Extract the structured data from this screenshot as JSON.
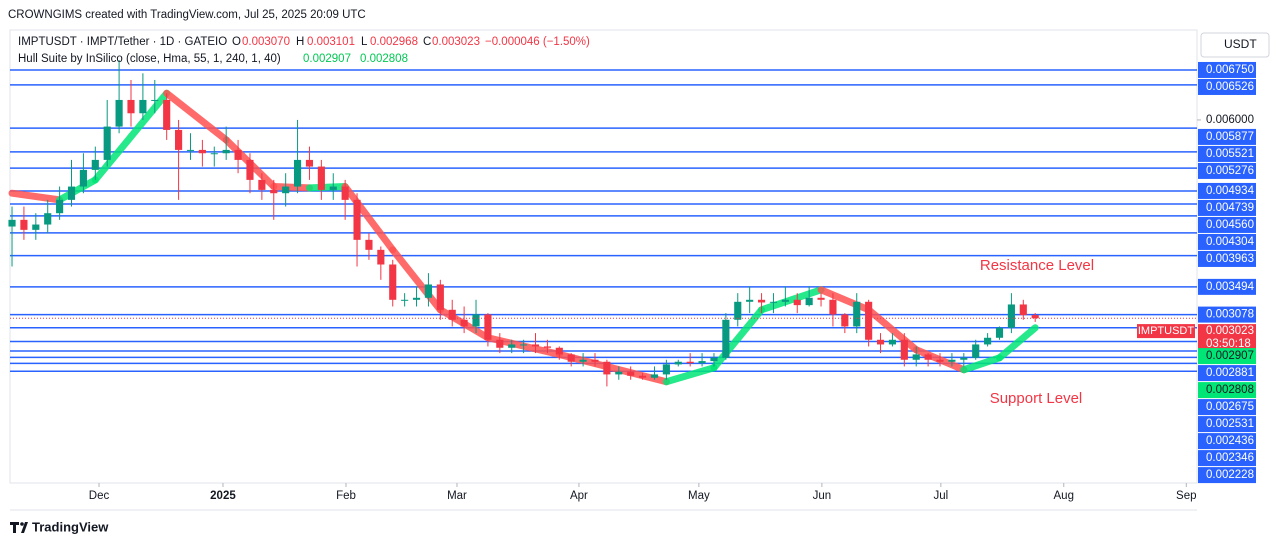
{
  "chart_data": {
    "type": "candlestick",
    "credit": "CROWNGIMS created with TradingView.com, Jul 25, 2025 20:09 UTC",
    "title": "IMPTUSDT · IMPT/Tether · 1D · GATEIO",
    "header": {
      "open": "0.003070",
      "high": "0.003101",
      "low": "0.002968",
      "close": "0.003023",
      "change": "−0.000046 (−1.50%)"
    },
    "indicator": "Hull Suite by InSilico (close, Hma, 55, 1, 240, 1, 40)",
    "hull_values": [
      0.002907,
      0.002808
    ],
    "currency": "USDT",
    "symbol": "IMPTUSDT",
    "last_price": 0.003023,
    "countdown": "03:50:18",
    "brand": "TradingView",
    "annotations": [
      "Resistance Level",
      "Support Level"
    ],
    "up_color": "#089981",
    "down_color": "#f23645",
    "level_color": "#2962ff",
    "hull_up_color": "#00e676",
    "hull_down_color": "#ff5252",
    "xlim": [
      -0.17,
      99.6
    ],
    "xticks": [
      {
        "value": 7.31,
        "label": "Dec"
      },
      {
        "value": 17.73,
        "label": "2025"
      },
      {
        "value": 28.07,
        "label": "Feb"
      },
      {
        "value": 37.4,
        "label": "Mar"
      },
      {
        "value": 47.65,
        "label": "Apr"
      },
      {
        "value": 57.73,
        "label": "May"
      },
      {
        "value": 68.07,
        "label": "Jun"
      },
      {
        "value": 78.07,
        "label": "Jul"
      },
      {
        "value": 88.4,
        "label": "Aug"
      },
      {
        "value": 98.7,
        "label": "Sep"
      }
    ],
    "ylim": [
      0.00055,
      0.00735
    ],
    "yticks": [
      {
        "value": 0.006,
        "label": "0.006000"
      }
    ],
    "levels": [
      {
        "value": 0.00675,
        "label": "0.006750"
      },
      0.006526,
      0.005877,
      0.005521,
      0.005276,
      0.004934,
      0.004739,
      {
        "value": 0.00456,
        "label": "0.004560"
      },
      0.004304,
      0.003963,
      0.003494,
      0.003078,
      0.002881,
      0.002675,
      0.002531,
      0.002436,
      0.002346,
      0.002228
    ],
    "open": [
      0.0044,
      0.0045,
      0.00435,
      0.00443,
      0.0046,
      0.0048,
      0.005,
      0.00525,
      0.0054,
      0.0059,
      0.0063,
      0.0061,
      0.0063,
      0.0063,
      0.00585,
      0.00555,
      0.00555,
      0.0055,
      0.0055,
      0.00555,
      0.0054,
      0.0051,
      0.00495,
      0.0049,
      0.005,
      0.0054,
      0.0053,
      0.00495,
      0.005,
      0.0048,
      0.0042,
      0.00405,
      0.00383,
      0.0033,
      0.0033,
      0.00333,
      0.00353,
      0.00315,
      0.003,
      0.0029,
      0.00308,
      0.0027,
      0.00258,
      0.00263,
      0.00263,
      0.0026,
      0.00258,
      0.00248,
      0.00237,
      0.0024,
      0.00237,
      0.00218,
      0.00222,
      0.00216,
      0.00213,
      0.00218,
      0.00233,
      0.00237,
      0.00235,
      0.00238,
      0.00243,
      0.003,
      0.00327,
      0.0033,
      0.00326,
      0.00327,
      0.0033,
      0.00322,
      0.00333,
      0.0033,
      0.00308,
      0.0029,
      0.00327,
      0.0027,
      0.00263,
      0.0027,
      0.0024,
      0.00248,
      0.0024,
      0.00237,
      0.0024,
      0.00243,
      0.00263,
      0.00273,
      0.00288,
      0.00323,
      0.00307
    ],
    "high": [
      0.0047,
      0.0047,
      0.0046,
      0.0048,
      0.005,
      0.0054,
      0.0055,
      0.0056,
      0.0063,
      0.0069,
      0.0066,
      0.0067,
      0.0066,
      0.0064,
      0.006,
      0.0058,
      0.0057,
      0.0056,
      0.0059,
      0.0057,
      0.0055,
      0.0052,
      0.0051,
      0.0052,
      0.006,
      0.0056,
      0.0054,
      0.0052,
      0.0051,
      0.0049,
      0.0043,
      0.0041,
      0.0039,
      0.0034,
      0.0035,
      0.0037,
      0.0036,
      0.0033,
      0.0032,
      0.0033,
      0.0031,
      0.0028,
      0.0027,
      0.0027,
      0.0028,
      0.0027,
      0.0026,
      0.0025,
      0.0025,
      0.0025,
      0.0024,
      0.0023,
      0.0023,
      0.0022,
      0.0023,
      0.0024,
      0.0024,
      0.0025,
      0.0025,
      0.0025,
      0.0031,
      0.0034,
      0.0035,
      0.0034,
      0.0034,
      0.0035,
      0.0034,
      0.0035,
      0.0034,
      0.0034,
      0.0031,
      0.0034,
      0.0033,
      0.0028,
      0.0028,
      0.0028,
      0.0026,
      0.0025,
      0.0025,
      0.0025,
      0.0025,
      0.0027,
      0.0028,
      0.0029,
      0.0034,
      0.0033,
      0.003101
    ],
    "low": [
      0.0038,
      0.0042,
      0.0042,
      0.0043,
      0.0045,
      0.0047,
      0.0049,
      0.0051,
      0.0053,
      0.0058,
      0.0059,
      0.006,
      0.0061,
      0.0057,
      0.0048,
      0.0054,
      0.0053,
      0.0053,
      0.0054,
      0.0052,
      0.0049,
      0.0048,
      0.0045,
      0.0047,
      0.0049,
      0.0051,
      0.0048,
      0.0048,
      0.0045,
      0.0038,
      0.0039,
      0.0036,
      0.0032,
      0.0032,
      0.0032,
      0.0032,
      0.003,
      0.0029,
      0.0028,
      0.0028,
      0.0026,
      0.0025,
      0.0025,
      0.0025,
      0.0025,
      0.0025,
      0.0024,
      0.0023,
      0.0023,
      0.0023,
      0.002,
      0.0021,
      0.0021,
      0.0021,
      0.0021,
      0.0021,
      0.0023,
      0.0023,
      0.0023,
      0.0023,
      0.0024,
      0.0029,
      0.0031,
      0.0031,
      0.0031,
      0.0032,
      0.0031,
      0.0032,
      0.0032,
      0.0029,
      0.0028,
      0.0028,
      0.0026,
      0.0025,
      0.0026,
      0.0023,
      0.0023,
      0.0023,
      0.0023,
      0.0023,
      0.0023,
      0.0024,
      0.0026,
      0.0027,
      0.0028,
      0.003,
      0.002968
    ],
    "close": [
      0.0045,
      0.00435,
      0.00443,
      0.0046,
      0.0048,
      0.005,
      0.00525,
      0.0054,
      0.0059,
      0.0063,
      0.0061,
      0.0063,
      0.0063,
      0.00585,
      0.00555,
      0.00555,
      0.0055,
      0.0055,
      0.00555,
      0.0054,
      0.0051,
      0.00495,
      0.0049,
      0.005,
      0.0054,
      0.0053,
      0.00495,
      0.005,
      0.0048,
      0.0042,
      0.00405,
      0.00383,
      0.0033,
      0.0033,
      0.00333,
      0.00353,
      0.00315,
      0.003,
      0.0029,
      0.00308,
      0.0027,
      0.00258,
      0.00263,
      0.00263,
      0.0026,
      0.00258,
      0.00248,
      0.00237,
      0.0024,
      0.00237,
      0.00218,
      0.00222,
      0.00216,
      0.00213,
      0.00218,
      0.00233,
      0.00237,
      0.00235,
      0.00238,
      0.00243,
      0.003,
      0.00327,
      0.0033,
      0.00326,
      0.00327,
      0.0033,
      0.00322,
      0.00333,
      0.0033,
      0.00308,
      0.0029,
      0.00327,
      0.0027,
      0.00263,
      0.0027,
      0.0024,
      0.00248,
      0.0024,
      0.00237,
      0.0024,
      0.00243,
      0.00263,
      0.00273,
      0.00288,
      0.00323,
      0.00307,
      0.003023
    ],
    "hull": {
      "x": [
        0,
        4,
        7,
        13,
        18,
        22,
        25,
        28,
        32,
        36,
        40,
        46,
        55,
        59,
        63,
        68,
        72,
        76,
        80,
        83,
        86
      ],
      "values": [
        0.0049,
        0.0048,
        0.0051,
        0.0064,
        0.0057,
        0.005,
        0.00498,
        0.005,
        0.00405,
        0.00315,
        0.00273,
        0.00248,
        0.00207,
        0.00228,
        0.00315,
        0.00345,
        0.00315,
        0.00255,
        0.00225,
        0.00243,
        0.00288
      ]
    }
  }
}
